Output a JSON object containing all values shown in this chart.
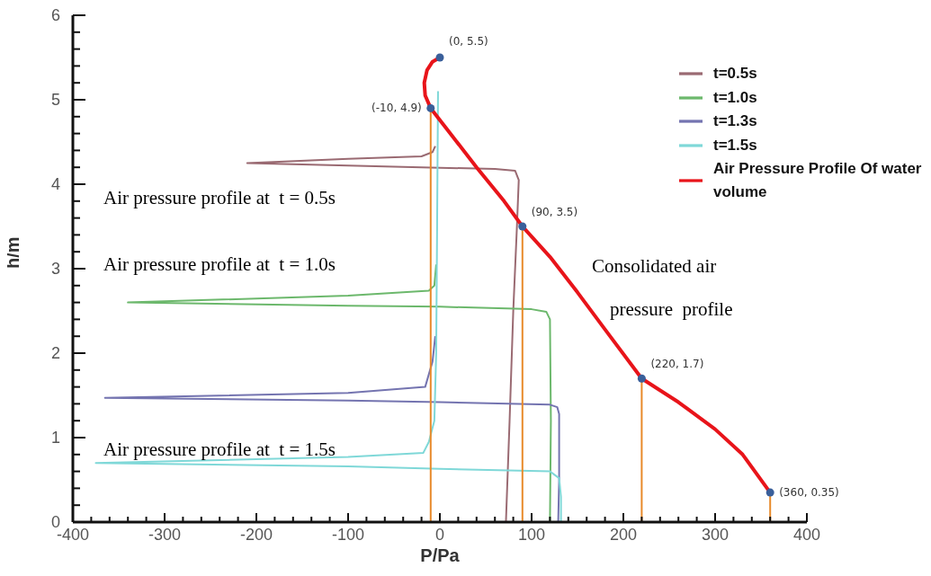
{
  "chart_data": {
    "type": "line",
    "xlabel": "P/Pa",
    "ylabel": "h/m",
    "legend": "top right",
    "xlim": [
      -400,
      400
    ],
    "ylim": [
      0,
      6
    ],
    "xticks": [
      -400,
      {
        "value": -380,
        "label": null
      },
      {
        "value": -360,
        "label": null
      },
      {
        "value": -340,
        "label": null
      },
      {
        "value": -320,
        "label": null
      },
      -300,
      {
        "value": -280,
        "label": null
      },
      {
        "value": -260,
        "label": null
      },
      {
        "value": -240,
        "label": null
      },
      {
        "value": -220,
        "label": null
      },
      -200,
      {
        "value": -180,
        "label": null
      },
      {
        "value": -160,
        "label": null
      },
      {
        "value": -140,
        "label": null
      },
      {
        "value": -120,
        "label": null
      },
      -100,
      {
        "value": -80,
        "label": null
      },
      {
        "value": -60,
        "label": null
      },
      {
        "value": -40,
        "label": null
      },
      {
        "value": -20,
        "label": null
      },
      0,
      {
        "value": 20,
        "label": null
      },
      {
        "value": 40,
        "label": null
      },
      {
        "value": 60,
        "label": null
      },
      {
        "value": 80,
        "label": null
      },
      100,
      {
        "value": 120,
        "label": null
      },
      {
        "value": 140,
        "label": null
      },
      {
        "value": 160,
        "label": null
      },
      {
        "value": 180,
        "label": null
      },
      200,
      {
        "value": 220,
        "label": null
      },
      {
        "value": 240,
        "label": null
      },
      {
        "value": 260,
        "label": null
      },
      {
        "value": 280,
        "label": null
      },
      300,
      {
        "value": 320,
        "label": null
      },
      {
        "value": 340,
        "label": null
      },
      {
        "value": 360,
        "label": null
      },
      {
        "value": 380,
        "label": null
      },
      400
    ],
    "yticks": [
      0,
      {
        "value": 0.2,
        "label": null
      },
      {
        "value": 0.4,
        "label": null
      },
      {
        "value": 0.6,
        "label": null
      },
      {
        "value": 0.8,
        "label": null
      },
      1,
      {
        "value": 1.2,
        "label": null
      },
      {
        "value": 1.4,
        "label": null
      },
      {
        "value": 1.6,
        "label": null
      },
      {
        "value": 1.8,
        "label": null
      },
      2,
      {
        "value": 2.2,
        "label": null
      },
      {
        "value": 2.4,
        "label": null
      },
      {
        "value": 2.6,
        "label": null
      },
      {
        "value": 2.8,
        "label": null
      },
      3,
      {
        "value": 3.2,
        "label": null
      },
      {
        "value": 3.4,
        "label": null
      },
      {
        "value": 3.6,
        "label": null
      },
      {
        "value": 3.8,
        "label": null
      },
      4,
      {
        "value": 4.2,
        "label": null
      },
      {
        "value": 4.4,
        "label": null
      },
      {
        "value": 4.6,
        "label": null
      },
      {
        "value": 4.8,
        "label": null
      },
      5,
      {
        "value": 5.2,
        "label": null
      },
      {
        "value": 5.4,
        "label": null
      },
      {
        "value": 5.6,
        "label": null
      },
      {
        "value": 5.8,
        "label": null
      },
      6
    ],
    "series": [
      {
        "name": "t=0.5s",
        "color": "#9a6a72",
        "x": [
          -5,
          -8,
          -20,
          -100,
          -210,
          -100,
          -20,
          60,
          82,
          86,
          84,
          80,
          76,
          72
        ],
        "values": [
          4.45,
          4.38,
          4.33,
          4.3,
          4.25,
          4.22,
          4.2,
          4.18,
          4.16,
          4.05,
          3.5,
          2.5,
          1.2,
          0
        ]
      },
      {
        "name": "t=1.0s",
        "color": "#6cb86c",
        "x": [
          -4,
          -6,
          -12,
          -100,
          -340,
          -100,
          0,
          100,
          116,
          120,
          121,
          120
        ],
        "values": [
          3.05,
          2.8,
          2.74,
          2.68,
          2.6,
          2.56,
          2.55,
          2.52,
          2.49,
          2.4,
          1.2,
          0
        ]
      },
      {
        "name": "t=1.3s",
        "color": "#7474b0",
        "x": [
          -5,
          -8,
          -16,
          -100,
          -365,
          -100,
          0,
          120,
          128,
          130,
          130,
          129
        ],
        "values": [
          2.2,
          1.9,
          1.6,
          1.53,
          1.47,
          1.44,
          1.42,
          1.39,
          1.36,
          1.28,
          0.5,
          0
        ]
      },
      {
        "name": "t=1.5s",
        "color": "#7fd8d8",
        "x": [
          -2,
          -3,
          -4,
          -6,
          -12,
          -18,
          -100,
          -375,
          -100,
          0,
          120,
          130,
          132,
          132
        ],
        "values": [
          5.1,
          3.5,
          2,
          1.2,
          0.95,
          0.82,
          0.77,
          0.7,
          0.66,
          0.63,
          0.6,
          0.52,
          0.3,
          0
        ]
      },
      {
        "name": "Air Pressure Profile Of water volume",
        "color": "#e8141a",
        "x": [
          0,
          -8,
          -14,
          -17,
          -16,
          -10,
          10,
          40,
          70,
          90,
          120,
          150,
          180,
          220,
          260,
          300,
          330,
          360
        ],
        "values": [
          5.5,
          5.45,
          5.35,
          5.2,
          5.05,
          4.9,
          4.62,
          4.2,
          3.8,
          3.5,
          3.14,
          2.72,
          2.28,
          1.7,
          1.42,
          1.1,
          0.8,
          0.35
        ]
      },
      {
        "type": "line",
        "color": "#e88a2a",
        "x": [
          -10,
          -10
        ],
        "values": [
          0,
          4.9
        ]
      },
      {
        "type": "line",
        "color": "#e88a2a",
        "x": [
          90,
          90
        ],
        "values": [
          0,
          3.5
        ]
      },
      {
        "type": "line",
        "color": "#e88a2a",
        "x": [
          220,
          220
        ],
        "values": [
          0,
          1.7
        ]
      },
      {
        "type": "line",
        "color": "#e88a2a",
        "x": [
          360,
          360
        ],
        "values": [
          0,
          0.35
        ]
      },
      {
        "type": "scatter",
        "color": "#3a5f9a",
        "x": [
          0,
          -10,
          90,
          220,
          360
        ],
        "values": [
          5.5,
          4.9,
          3.5,
          1.7,
          0.35
        ]
      }
    ],
    "annotations": [
      {
        "text": "(0, 5.5)",
        "x": 0,
        "y": 5.5
      },
      {
        "text": "(-10, 4.9)",
        "x": -10,
        "y": 4.9
      },
      {
        "text": "(90, 3.5)",
        "x": 90,
        "y": 3.5
      },
      {
        "text": "(220, 1.7)",
        "x": 220,
        "y": 1.7
      },
      {
        "text": "(360, 0.35)",
        "x": 360,
        "y": 0.35
      },
      "Air pressure profile at  t = 0.5s",
      "Air pressure profile at  t = 1.0s",
      "Air pressure profile at  t = 1.5s",
      "Consolidated air",
      "pressure  profile"
    ]
  }
}
